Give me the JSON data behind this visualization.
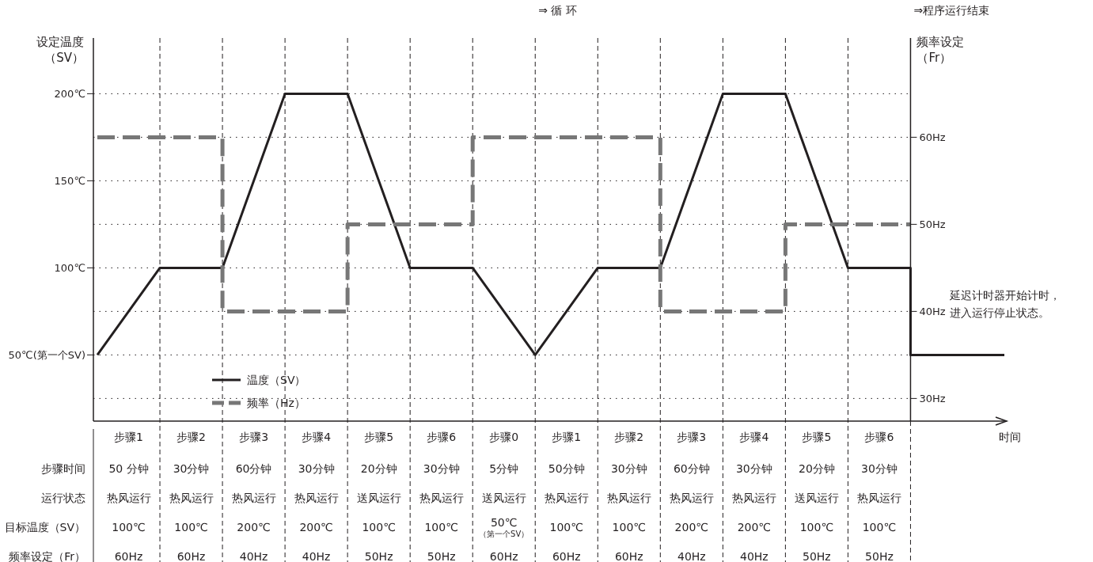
{
  "chart_data": {
    "type": "line",
    "categories": [
      null,
      "步骤1",
      null,
      "步骤2",
      null,
      "步骤3",
      null,
      "步骤4",
      null,
      "步骤5",
      null,
      "步骤6",
      null,
      "步骤0",
      null,
      "步骤1",
      null,
      "步骤2",
      null,
      "步骤3",
      null,
      "步骤4",
      null,
      "步骤5",
      null,
      "步骤6",
      null,
      null,
      null,
      null
    ],
    "ylim": [
      12,
      232
    ],
    "yticks": [
      {
        "value": 50,
        "label": "50℃(第一个SV)"
      },
      {
        "value": 100,
        "label": "100℃"
      },
      {
        "value": 150,
        "label": "150℃"
      },
      {
        "value": 200,
        "label": "200℃"
      }
    ],
    "y2lim": [
      27.4,
      71.4
    ],
    "y2ticks": [
      {
        "value": 30,
        "label": "30Hz"
      },
      {
        "value": 40,
        "label": "40Hz"
      },
      {
        "value": 50,
        "label": "50Hz"
      },
      {
        "value": 60,
        "label": "60Hz"
      }
    ],
    "ylabel": "设定温度（SV）",
    "y2label": "频率设定（Fr）",
    "xlabel": "时间",
    "grid": true,
    "legend": "bottom left",
    "marker": "none",
    "series": [
      {
        "name": "温度（SV）",
        "color": "#231f20",
        "line_style": "solid",
        "values": [
          50,
          75,
          100,
          100,
          100,
          150,
          200,
          200,
          200,
          150,
          100,
          100,
          100,
          75,
          50,
          75,
          100,
          100,
          100,
          150,
          200,
          200,
          200,
          150,
          100,
          100,
          100,
          null,
          null,
          null
        ]
      },
      {
        "type": "step",
        "color": "#231f20",
        "line_style": "solid",
        "values": [
          null,
          null,
          null,
          null,
          null,
          null,
          null,
          null,
          null,
          null,
          null,
          null,
          null,
          null,
          null,
          null,
          null,
          null,
          null,
          null,
          null,
          null,
          null,
          null,
          null,
          100,
          50,
          50,
          50,
          50
        ]
      },
      {
        "name": "频率（Hz）",
        "type": "step",
        "color": "#777777",
        "line_style": "dashed",
        "axis": "y2",
        "values": [
          60,
          60,
          60,
          60,
          40,
          40,
          40,
          40,
          50,
          50,
          50,
          50,
          60,
          60,
          60,
          60,
          60,
          60,
          40,
          40,
          40,
          40,
          50,
          50,
          50,
          50,
          50,
          null,
          null,
          null
        ]
      }
    ],
    "annotations": [
      "⇒ 循 环",
      "⇒程序运行结束",
      "延迟计时器开始计时，进入运行停止状态。",
      "步骤时间",
      "50 分钟",
      "30分钟",
      "60分钟",
      "30分钟",
      "20分钟",
      "30分钟",
      "5分钟",
      "50分钟",
      "30分钟",
      "60分钟",
      "30分钟",
      "20分钟",
      "30分钟",
      "运行状态",
      "热风运行",
      "热风运行",
      "热风运行",
      "热风运行",
      "送风运行",
      "热风运行",
      "送风运行",
      "热风运行",
      "热风运行",
      "热风运行",
      "热风运行",
      "送风运行",
      "热风运行",
      "目标温度（SV）",
      "100℃",
      "100℃",
      "200℃",
      "200℃",
      "100℃",
      "100℃",
      "50℃$_{（第一个SV）}$",
      "100℃",
      "100℃",
      "200℃",
      "200℃",
      "100℃",
      "100℃",
      "频率设定（Fr）",
      "60Hz",
      "60Hz",
      "40Hz",
      "40Hz",
      "50Hz",
      "50Hz",
      "60Hz",
      "60Hz",
      "60Hz",
      "40Hz",
      "40Hz",
      "50Hz",
      "50Hz"
    ]
  }
}
